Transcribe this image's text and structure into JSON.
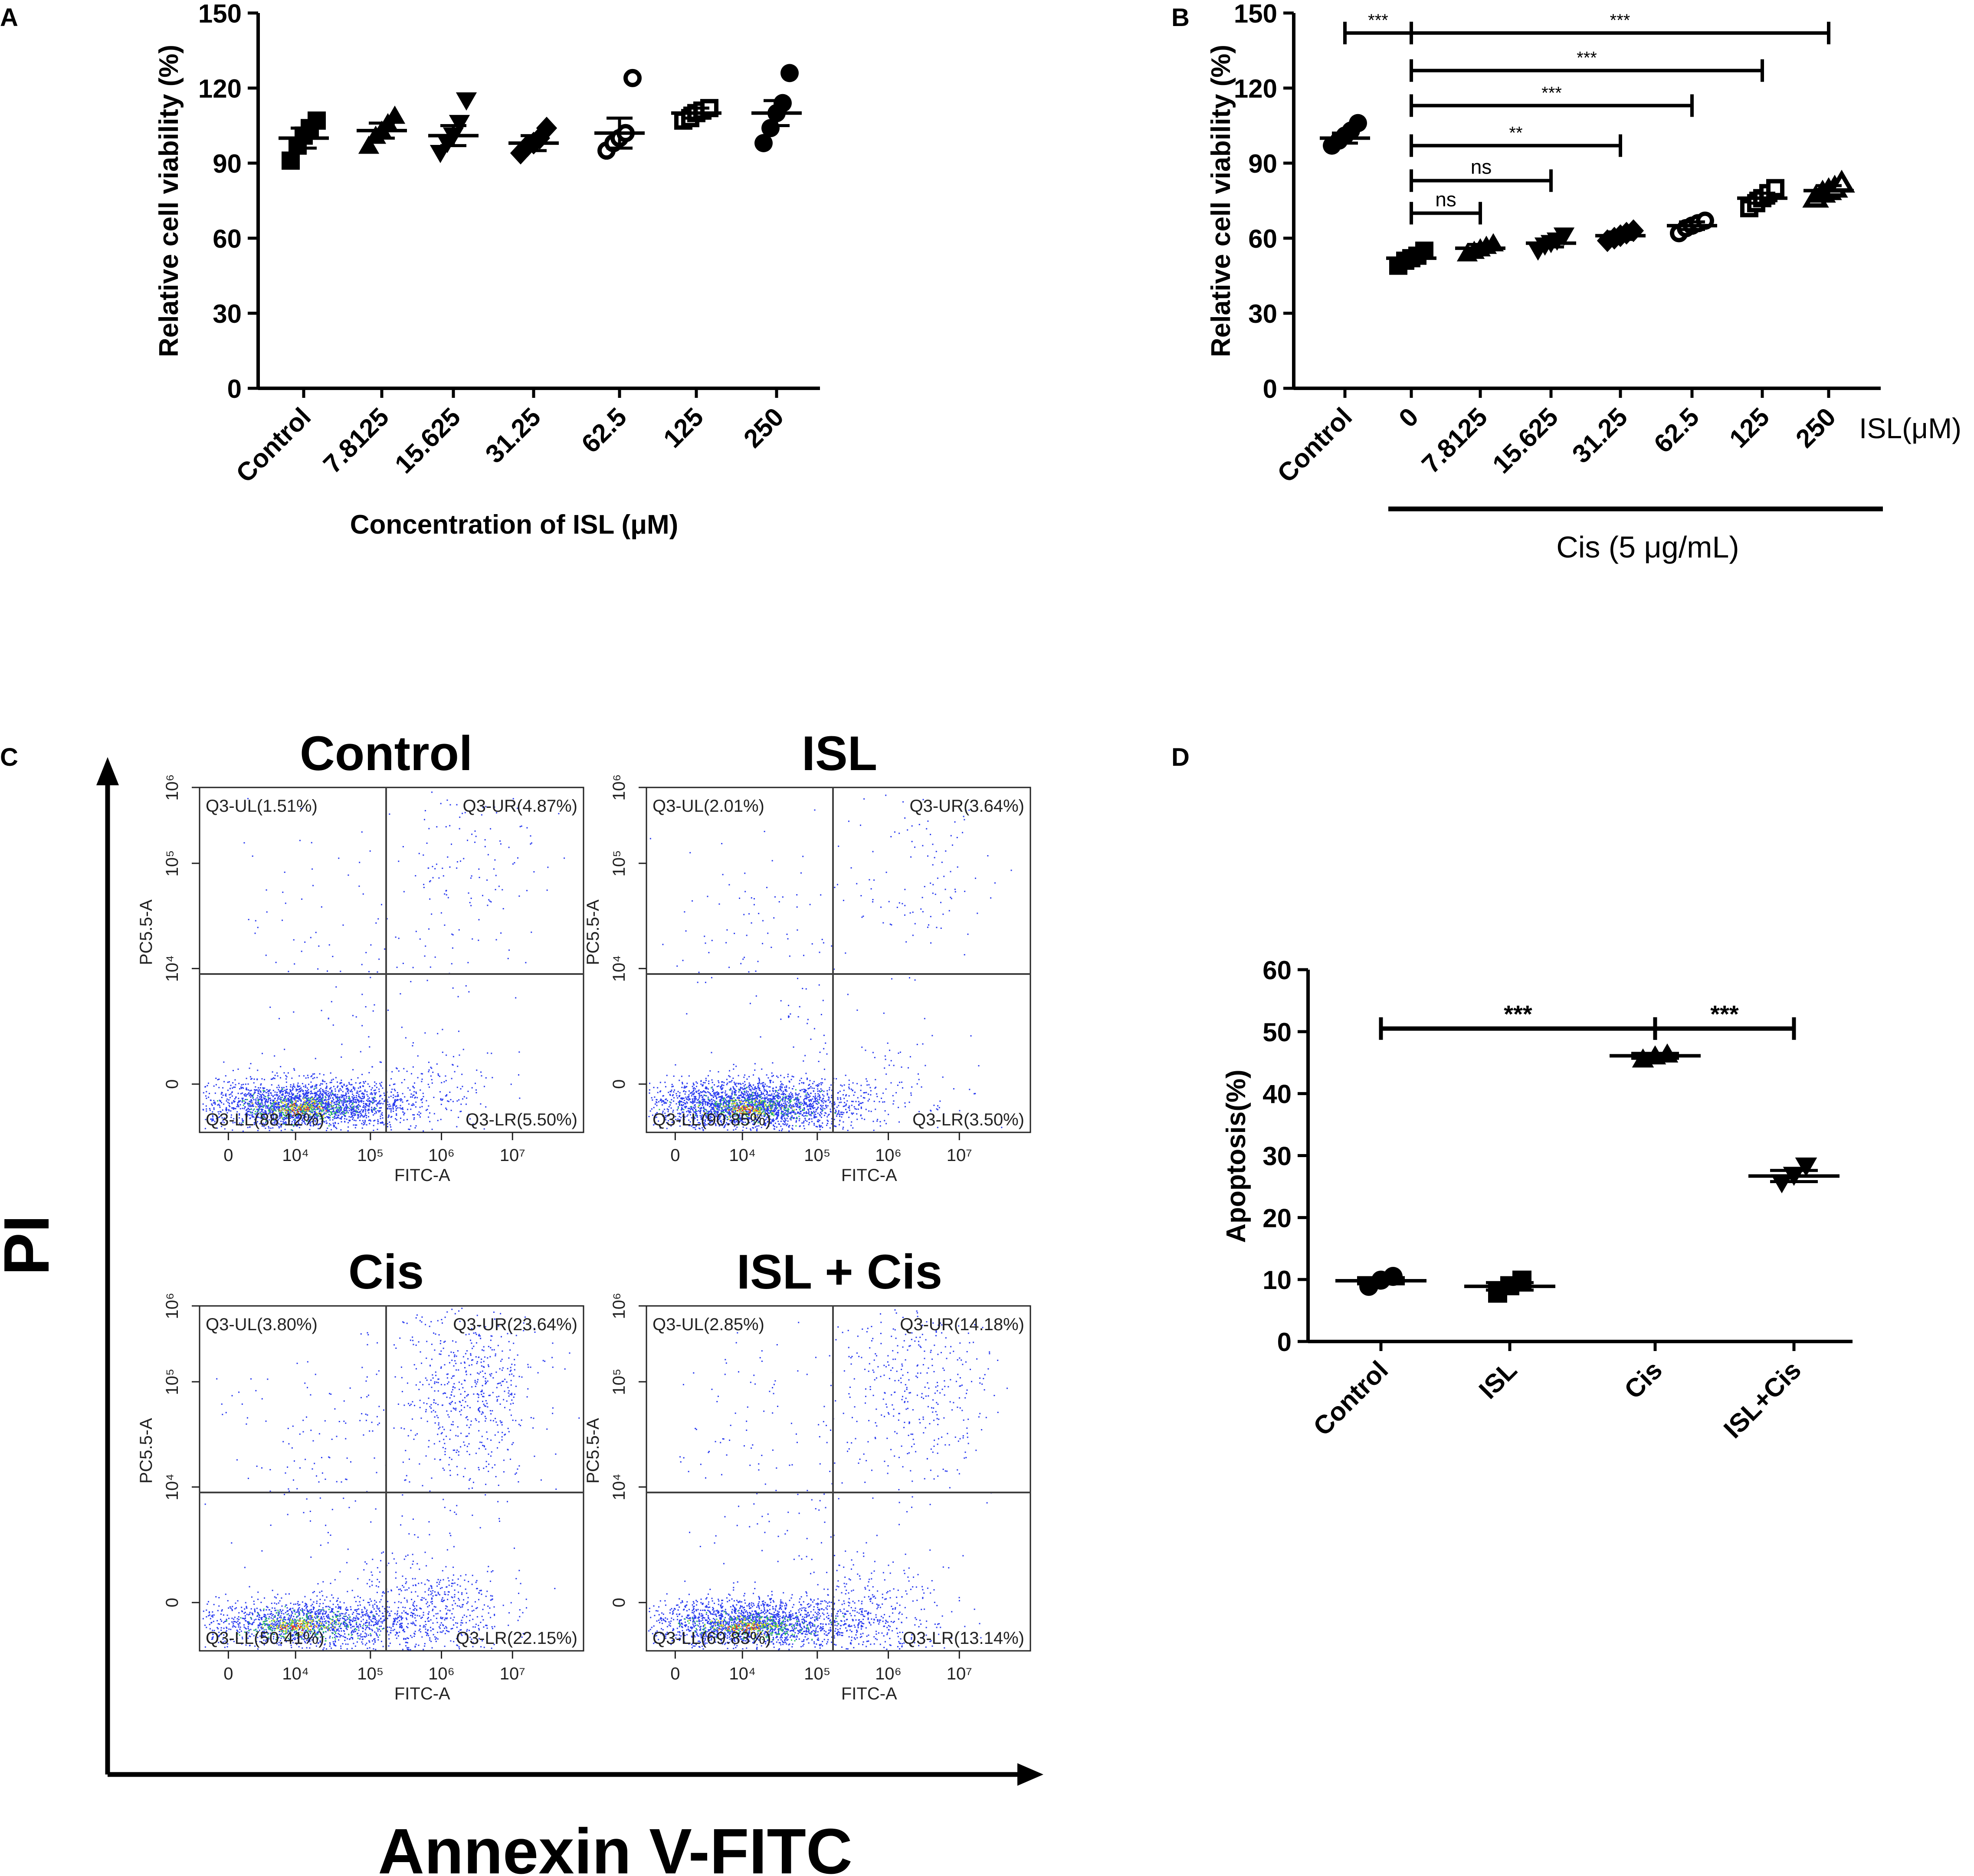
{
  "colors": {
    "ink": "#000000",
    "gate": "#404040",
    "dots": "#2a3cf0",
    "core_green": "#2ec060",
    "core_yellow": "#e8e020",
    "core_red": "#e84020"
  },
  "chart_data": [
    {
      "panel": "A",
      "type": "scatter",
      "ylabel": "Relative cell viability (%)",
      "xlabel": "Concentration of ISL (μM)",
      "ylim": [
        0,
        150
      ],
      "yticks": [
        "0",
        "30",
        "60",
        "90",
        "120",
        "150"
      ],
      "categories": [
        "Control",
        "7.8125",
        "15.625",
        "31.25",
        "62.5",
        "125",
        "250"
      ],
      "markers": [
        "square",
        "triangle",
        "triangle-down",
        "diamond",
        "circle-open",
        "square-open",
        "circle"
      ],
      "means": [
        100,
        103,
        101,
        98,
        102,
        110,
        110
      ],
      "sem": [
        4,
        3,
        4,
        3,
        6,
        2,
        5
      ],
      "points": [
        [
          91,
          97,
          101,
          104,
          107
        ],
        [
          97,
          101,
          103,
          106,
          109
        ],
        [
          94,
          98,
          101,
          106,
          115
        ],
        [
          94,
          97,
          98,
          100,
          104
        ],
        [
          95,
          98,
          100,
          102,
          124
        ],
        [
          107,
          108,
          110,
          111,
          112
        ],
        [
          98,
          104,
          110,
          114,
          126
        ]
      ]
    },
    {
      "panel": "B",
      "type": "scatter",
      "ylabel": "Relative cell viability (%)",
      "ylim": [
        0,
        150
      ],
      "yticks": [
        "0",
        "30",
        "60",
        "90",
        "120",
        "150"
      ],
      "categories": [
        "Control",
        "0",
        "7.8125",
        "15.625",
        "31.25",
        "62.5",
        "125",
        "250"
      ],
      "unit_label": "ISL(μM)",
      "group_label": "Cis (5 μg/mL)",
      "markers": [
        "circle",
        "square",
        "triangle",
        "triangle-down",
        "diamond",
        "circle-open",
        "square-open",
        "triangle-open"
      ],
      "means": [
        100,
        52,
        56,
        58,
        61,
        65,
        76,
        79
      ],
      "sem": [
        2,
        1.5,
        1.5,
        1.5,
        1.5,
        1.5,
        2,
        2
      ],
      "points": [
        [
          97,
          99,
          101,
          103,
          106
        ],
        [
          49,
          51,
          52,
          53,
          55
        ],
        [
          54,
          55,
          56,
          57,
          58
        ],
        [
          55,
          57,
          58,
          59,
          61
        ],
        [
          59,
          60,
          61,
          62,
          63
        ],
        [
          62,
          64,
          65,
          66,
          67
        ],
        [
          72,
          74,
          76,
          78,
          80
        ],
        [
          76,
          78,
          79,
          80,
          82
        ]
      ],
      "significance": [
        {
          "from": 0,
          "to": 1,
          "label": "***",
          "y": 142
        },
        {
          "from": 1,
          "to": 7,
          "label": "***",
          "y": 142
        },
        {
          "from": 1,
          "to": 6,
          "label": "***",
          "y": 127
        },
        {
          "from": 1,
          "to": 5,
          "label": "***",
          "y": 113
        },
        {
          "from": 1,
          "to": 4,
          "label": "**",
          "y": 97
        },
        {
          "from": 1,
          "to": 3,
          "label": "ns",
          "y": 83
        },
        {
          "from": 1,
          "to": 2,
          "label": "ns",
          "y": 70
        }
      ]
    },
    {
      "panel": "C",
      "type": "scatter",
      "ylabel": "PI",
      "xlabel": "Annexin V-FITC",
      "subplot_xlabel": "FITC-A",
      "subplot_ylabel": "PC5.5-A",
      "x_ticks": [
        "0",
        "10⁴",
        "10⁵",
        "10⁶",
        "10⁷"
      ],
      "y_ticks": [
        "0",
        "10⁴",
        "10⁵",
        "10⁶"
      ],
      "subplots": [
        {
          "title": "Control",
          "UL": "Q3-UL(1.51%)",
          "UR": "Q3-UR(4.87%)",
          "LL": "Q3-LL(88.12%)",
          "LR": "Q3-LR(5.50%)",
          "ul": 1.51,
          "ur": 4.87,
          "ll": 88.12,
          "lr": 5.5
        },
        {
          "title": "ISL",
          "UL": "Q3-UL(2.01%)",
          "UR": "Q3-UR(3.64%)",
          "LL": "Q3-LL(90.85%)",
          "LR": "Q3-LR(3.50%)",
          "ul": 2.01,
          "ur": 3.64,
          "ll": 90.85,
          "lr": 3.5
        },
        {
          "title": "Cis",
          "UL": "Q3-UL(3.80%)",
          "UR": "Q3-UR(23.64%)",
          "LL": "Q3-LL(50.41%)",
          "LR": "Q3-LR(22.15%)",
          "ul": 3.8,
          "ur": 23.64,
          "ll": 50.41,
          "lr": 22.15
        },
        {
          "title": "ISL + Cis",
          "UL": "Q3-UL(2.85%)",
          "UR": "Q3-UR(14.18%)",
          "LL": "Q3-LL(69.83%)",
          "LR": "Q3-LR(13.14%)",
          "ul": 2.85,
          "ur": 14.18,
          "ll": 69.83,
          "lr": 13.14
        }
      ]
    },
    {
      "panel": "D",
      "type": "scatter",
      "ylabel": "Apoptosis(%)",
      "ylim": [
        0,
        60
      ],
      "yticks": [
        "0",
        "10",
        "20",
        "30",
        "40",
        "50",
        "60"
      ],
      "categories": [
        "Control",
        "ISL",
        "Cis",
        "ISL+Cis"
      ],
      "markers": [
        "circle",
        "square",
        "triangle",
        "triangle-down"
      ],
      "means": [
        9.8,
        8.9,
        46.1,
        26.7
      ],
      "sem": [
        0.5,
        0.6,
        0.4,
        0.9
      ],
      "points": [
        [
          8.9,
          9.9,
          10.5
        ],
        [
          7.8,
          9.0,
          9.9
        ],
        [
          45.6,
          46.1,
          46.4
        ],
        [
          25.6,
          26.8,
          28.3
        ]
      ],
      "significance": [
        {
          "from": 0,
          "to": 2,
          "label": "***",
          "y": 50.5
        },
        {
          "from": 2,
          "to": 3,
          "label": "***",
          "y": 50.5
        }
      ]
    }
  ],
  "panel_letters": [
    "A",
    "B",
    "C",
    "D"
  ]
}
